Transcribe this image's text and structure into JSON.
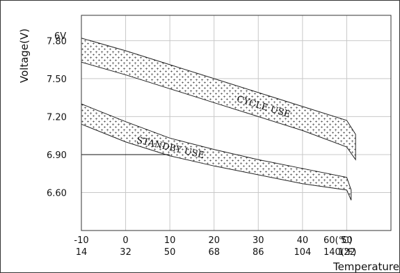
{
  "chart_data": {
    "type": "area",
    "title": "",
    "ylabel": "Voltage(V)",
    "ylabel_unit_top": "6V",
    "xlabel": "Temperature",
    "x_unit_c": "60(℃)",
    "x_unit_f": "140(℉)",
    "x_ticks_c": [
      "-10",
      "0",
      "10",
      "20",
      "30",
      "40",
      "50"
    ],
    "x_ticks_f": [
      "14",
      "32",
      "50",
      "68",
      "86",
      "104",
      "122"
    ],
    "x_tick_values": [
      -10,
      0,
      10,
      20,
      30,
      40,
      50,
      60
    ],
    "y_ticks": [
      "7.80",
      "7.50",
      "7.20",
      "6.90",
      "6.60"
    ],
    "y_tick_values": [
      7.8,
      7.5,
      7.2,
      6.9,
      6.6
    ],
    "xlim": [
      -10,
      60
    ],
    "ylim": [
      6.3,
      8.0
    ],
    "grid": true,
    "series": [
      {
        "name": "CYCLE USE",
        "x": [
          -10,
          0,
          10,
          20,
          30,
          40,
          50,
          52
        ],
        "upper": [
          7.82,
          7.72,
          7.61,
          7.5,
          7.39,
          7.28,
          7.17,
          7.06
        ],
        "lower": [
          7.63,
          7.53,
          7.42,
          7.31,
          7.2,
          7.09,
          6.96,
          6.86
        ]
      },
      {
        "name": "STANDBY USE",
        "x": [
          -10,
          0,
          10,
          20,
          30,
          40,
          50,
          51
        ],
        "upper": [
          7.3,
          7.16,
          7.03,
          6.94,
          6.86,
          6.79,
          6.72,
          6.62
        ],
        "lower": [
          7.14,
          7.0,
          6.89,
          6.81,
          6.74,
          6.67,
          6.62,
          6.54
        ]
      }
    ],
    "reference_line": {
      "y": 6.9,
      "x_end": 10
    }
  }
}
